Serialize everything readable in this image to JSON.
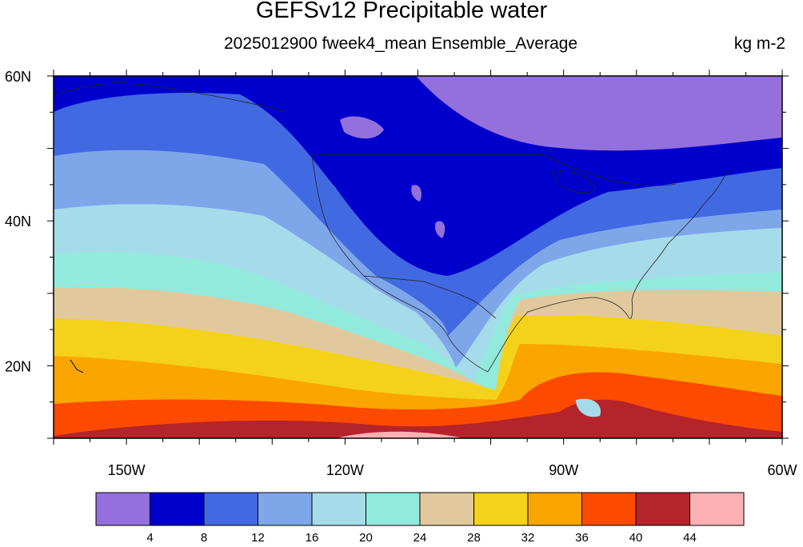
{
  "title": "GEFSv12 Precipitable water",
  "subtitle": "2025012900 fweek4_mean Ensemble_Average",
  "units": "kg m-2",
  "map": {
    "lat_range": [
      10,
      60
    ],
    "lon_range": [
      -160,
      -60
    ],
    "lat_labels": [
      {
        "value": 60,
        "text": "60N"
      },
      {
        "value": 40,
        "text": "40N"
      },
      {
        "value": 20,
        "text": "20N"
      }
    ],
    "lon_labels": [
      {
        "value": -150,
        "text": "150W"
      },
      {
        "value": -120,
        "text": "120W"
      },
      {
        "value": -90,
        "text": "90W"
      },
      {
        "value": -60,
        "text": "60W"
      }
    ]
  },
  "colorbar": {
    "colors": [
      "#9370db",
      "#0000cd",
      "#4169e1",
      "#7ea7ea",
      "#a6dcea",
      "#92eadc",
      "#e2c99d",
      "#f5d21a",
      "#fba500",
      "#fc4a00",
      "#b5232b",
      "#fdb1b3"
    ],
    "labels": [
      "4",
      "8",
      "12",
      "16",
      "20",
      "24",
      "28",
      "32",
      "36",
      "40",
      "44"
    ]
  }
}
